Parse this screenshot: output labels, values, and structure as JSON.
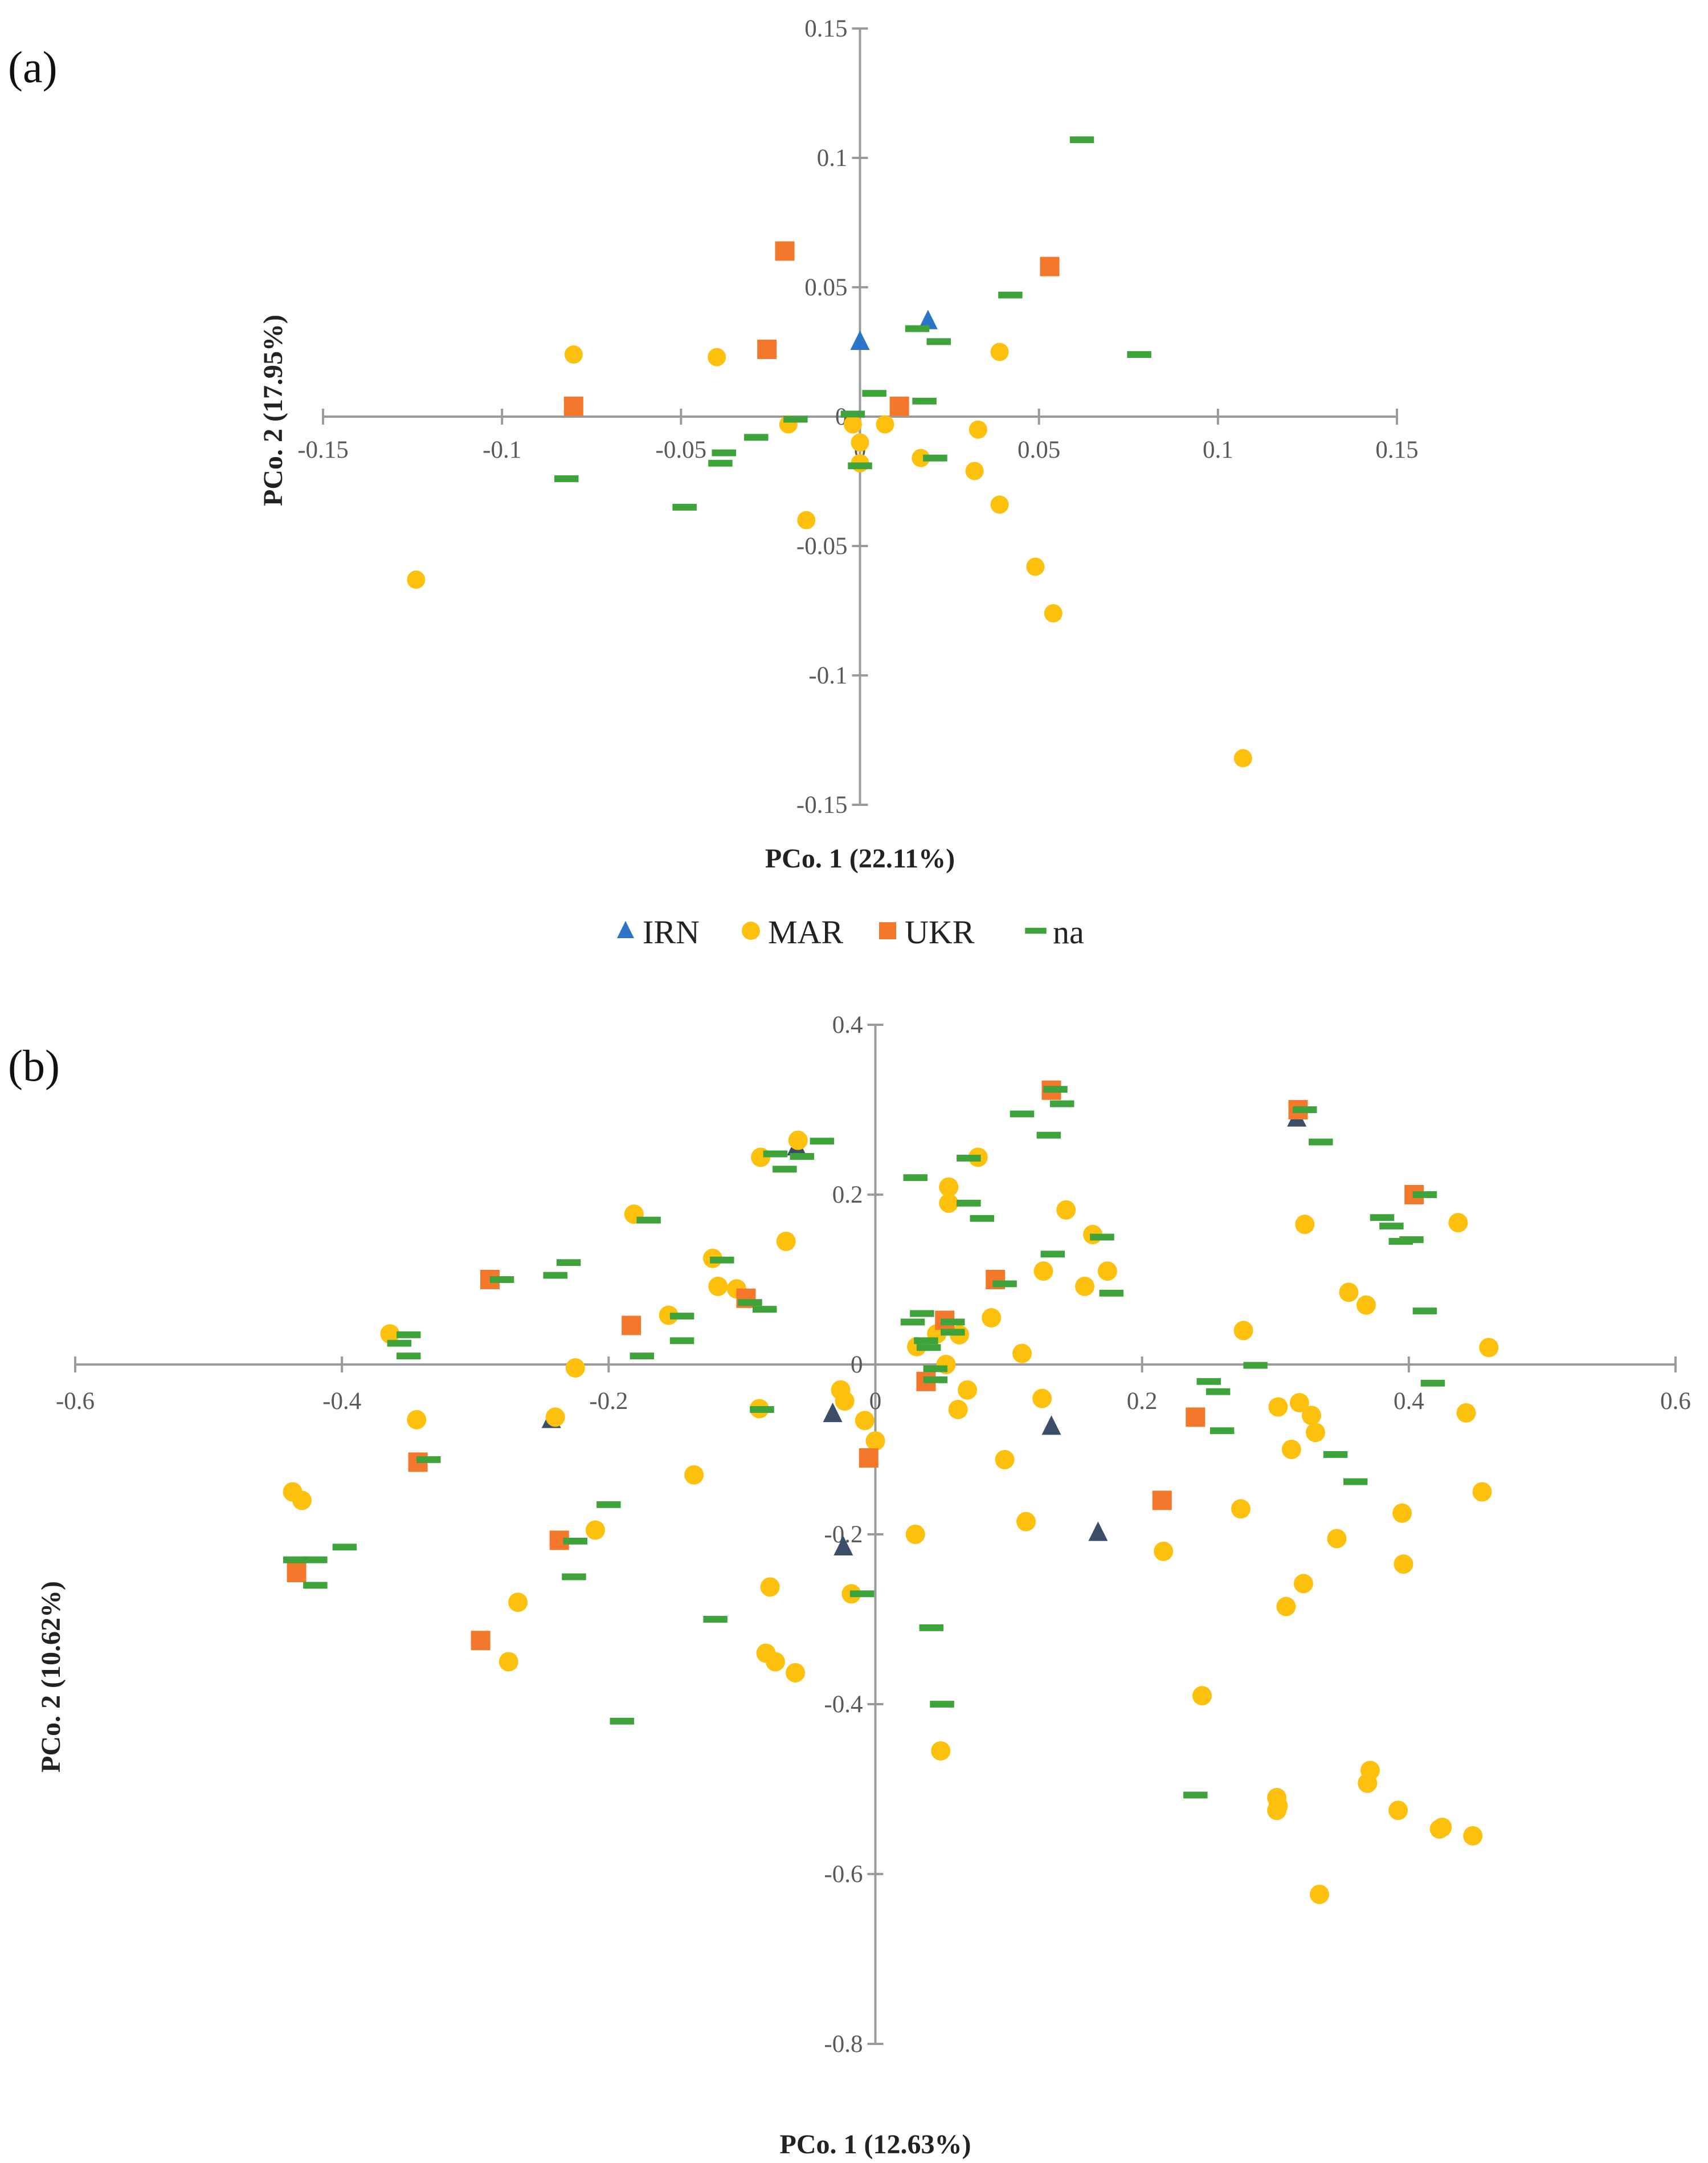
{
  "colors": {
    "IRN": "#2a75c8",
    "IRN_b": "#3b4e68",
    "MAR": "#fdc10d",
    "UKR": "#f4782c",
    "na": "#3ea33a",
    "axis": "#9a9a9a"
  },
  "chart_data": [
    {
      "panel": "(a)",
      "type": "scatter",
      "xlabel": "PCo. 1  (22.11%)",
      "ylabel": "PCo. 2 (17.95%)",
      "xlim": [
        -0.15,
        0.15
      ],
      "ylim": [
        -0.15,
        0.15
      ],
      "xticks": [
        "-0.15",
        "-0.1",
        "-0.05",
        "0",
        "0.05",
        "0.1",
        "0.15"
      ],
      "yticks": [
        "-0.15",
        "-0.1",
        "-0.05",
        "0",
        "0.05",
        "0.1",
        "0.15"
      ],
      "legend": [
        "IRN",
        "MAR",
        "UKR",
        "na"
      ],
      "series": [
        {
          "name": "IRN",
          "marker": "triangle",
          "points": [
            [
              0.0,
              0.029
            ],
            [
              0.019,
              0.037
            ]
          ]
        },
        {
          "name": "MAR",
          "marker": "circle",
          "points": [
            [
              -0.08,
              0.024
            ],
            [
              -0.04,
              0.023
            ],
            [
              -0.02,
              -0.003
            ],
            [
              -0.015,
              -0.04
            ],
            [
              -0.002,
              -0.003
            ],
            [
              0.0,
              -0.018
            ],
            [
              0.007,
              -0.003
            ],
            [
              0.017,
              -0.016
            ],
            [
              0.033,
              -0.005
            ],
            [
              0.032,
              -0.021
            ],
            [
              0.039,
              -0.034
            ],
            [
              0.039,
              0.025
            ],
            [
              0.049,
              -0.058
            ],
            [
              0.054,
              -0.076
            ],
            [
              0.107,
              -0.132
            ],
            [
              -0.124,
              -0.063
            ],
            [
              0.0,
              -0.01
            ]
          ]
        },
        {
          "name": "UKR",
          "marker": "square",
          "points": [
            [
              -0.021,
              0.064
            ],
            [
              -0.026,
              0.026
            ],
            [
              -0.08,
              0.004
            ],
            [
              0.053,
              0.058
            ],
            [
              0.011,
              0.004
            ]
          ]
        },
        {
          "name": "na",
          "marker": "dash",
          "points": [
            [
              0.062,
              0.107
            ],
            [
              0.078,
              0.024
            ],
            [
              0.042,
              0.047
            ],
            [
              0.016,
              0.034
            ],
            [
              0.022,
              0.029
            ],
            [
              0.018,
              0.006
            ],
            [
              0.021,
              -0.016
            ],
            [
              0.004,
              0.009
            ],
            [
              -0.002,
              0.001
            ],
            [
              0.0,
              -0.019
            ],
            [
              -0.018,
              -0.001
            ],
            [
              -0.029,
              -0.008
            ],
            [
              -0.038,
              -0.014
            ],
            [
              -0.039,
              -0.018
            ],
            [
              -0.049,
              -0.035
            ],
            [
              -0.082,
              -0.024
            ]
          ]
        }
      ]
    },
    {
      "panel": "(b)",
      "type": "scatter",
      "xlabel": "PCo. 1 (12.63%)",
      "ylabel": "PCo. 2 (10.62%)",
      "xlim": [
        -0.6,
        0.6
      ],
      "ylim": [
        -0.8,
        0.4
      ],
      "xticks": [
        "-0.6",
        "-0.4",
        "-0.2",
        "0",
        "0.2",
        "0.4",
        "0.6"
      ],
      "yticks": [
        "-0.8",
        "-0.6",
        "-0.4",
        "-0.2",
        "0",
        "0.2",
        "0.4"
      ],
      "series": [
        {
          "name": "IRN",
          "marker": "triangle",
          "points": [
            [
              -0.243,
              -0.065
            ],
            [
              -0.032,
              -0.058
            ],
            [
              -0.024,
              -0.215
            ],
            [
              0.132,
              -0.073
            ],
            [
              0.167,
              -0.198
            ],
            [
              -0.059,
              0.256
            ],
            [
              0.316,
              0.29
            ]
          ]
        },
        {
          "name": "MAR",
          "marker": "circle",
          "points": [
            [
              -0.058,
              0.264
            ],
            [
              -0.086,
              0.244
            ],
            [
              -0.067,
              0.145
            ],
            [
              -0.181,
              0.177
            ],
            [
              -0.122,
              0.125
            ],
            [
              -0.118,
              0.092
            ],
            [
              -0.104,
              0.089
            ],
            [
              -0.155,
              0.058
            ],
            [
              -0.225,
              -0.004
            ],
            [
              -0.24,
              -0.062
            ],
            [
              -0.344,
              -0.065
            ],
            [
              -0.364,
              0.036
            ],
            [
              -0.437,
              -0.15
            ],
            [
              -0.43,
              -0.16
            ],
            [
              -0.268,
              -0.28
            ],
            [
              -0.275,
              -0.35
            ],
            [
              -0.21,
              -0.195
            ],
            [
              -0.136,
              -0.13
            ],
            [
              -0.087,
              -0.052
            ],
            [
              -0.079,
              -0.262
            ],
            [
              -0.082,
              -0.34
            ],
            [
              -0.075,
              -0.35
            ],
            [
              -0.06,
              -0.363
            ],
            [
              -0.026,
              -0.03
            ],
            [
              -0.023,
              -0.043
            ],
            [
              -0.018,
              -0.27
            ],
            [
              -0.008,
              -0.066
            ],
            [
              0.0,
              -0.09
            ],
            [
              0.03,
              -0.2
            ],
            [
              0.031,
              0.021
            ],
            [
              0.046,
              0.036
            ],
            [
              0.053,
              0.0
            ],
            [
              0.055,
              0.209
            ],
            [
              0.055,
              0.19
            ],
            [
              0.062,
              -0.053
            ],
            [
              0.063,
              0.035
            ],
            [
              0.069,
              -0.03
            ],
            [
              0.077,
              0.244
            ],
            [
              0.087,
              0.055
            ],
            [
              0.097,
              -0.112
            ],
            [
              0.11,
              0.013
            ],
            [
              0.113,
              -0.185
            ],
            [
              0.126,
              0.11
            ],
            [
              0.125,
              -0.04
            ],
            [
              0.143,
              0.182
            ],
            [
              0.157,
              0.092
            ],
            [
              0.163,
              0.153
            ],
            [
              0.174,
              0.11
            ],
            [
              0.049,
              -0.455
            ],
            [
              0.216,
              -0.22
            ],
            [
              0.245,
              -0.39
            ],
            [
              0.276,
              0.04
            ],
            [
              0.274,
              -0.17
            ],
            [
              0.302,
              -0.05
            ],
            [
              0.308,
              -0.285
            ],
            [
              0.312,
              -0.1
            ],
            [
              0.318,
              -0.045
            ],
            [
              0.321,
              -0.258
            ],
            [
              0.322,
              0.165
            ],
            [
              0.327,
              -0.06
            ],
            [
              0.33,
              -0.08
            ],
            [
              0.301,
              -0.51
            ],
            [
              0.302,
              -0.52
            ],
            [
              0.301,
              -0.525
            ],
            [
              0.333,
              -0.624
            ],
            [
              0.346,
              -0.205
            ],
            [
              0.355,
              0.085
            ],
            [
              0.368,
              0.07
            ],
            [
              0.371,
              -0.478
            ],
            [
              0.369,
              -0.493
            ],
            [
              0.392,
              -0.525
            ],
            [
              0.395,
              -0.175
            ],
            [
              0.396,
              -0.235
            ],
            [
              0.423,
              -0.547
            ],
            [
              0.425,
              -0.545
            ],
            [
              0.437,
              0.167
            ],
            [
              0.443,
              -0.057
            ],
            [
              0.455,
              -0.15
            ],
            [
              0.46,
              0.02
            ],
            [
              0.448,
              -0.555
            ]
          ]
        },
        {
          "name": "UKR",
          "marker": "square",
          "points": [
            [
              0.132,
              0.323
            ],
            [
              0.317,
              0.3
            ],
            [
              0.404,
              0.2
            ],
            [
              0.09,
              0.1
            ],
            [
              0.052,
              0.052
            ],
            [
              0.038,
              -0.02
            ],
            [
              -0.005,
              -0.11
            ],
            [
              -0.097,
              0.078
            ],
            [
              -0.183,
              0.046
            ],
            [
              -0.289,
              0.1
            ],
            [
              -0.343,
              -0.115
            ],
            [
              -0.237,
              -0.207
            ],
            [
              -0.434,
              -0.245
            ],
            [
              -0.296,
              -0.325
            ],
            [
              0.215,
              -0.16
            ],
            [
              0.24,
              -0.062
            ]
          ]
        },
        {
          "name": "na",
          "marker": "dash",
          "points": [
            [
              0.135,
              0.324
            ],
            [
              0.14,
              0.307
            ],
            [
              0.11,
              0.295
            ],
            [
              0.13,
              0.27
            ],
            [
              0.334,
              0.262
            ],
            [
              0.322,
              0.3
            ],
            [
              0.412,
              0.2
            ],
            [
              0.38,
              0.173
            ],
            [
              0.387,
              0.163
            ],
            [
              0.394,
              0.145
            ],
            [
              0.402,
              0.147
            ],
            [
              0.412,
              0.063
            ],
            [
              0.418,
              -0.022
            ],
            [
              0.285,
              -0.001
            ],
            [
              0.25,
              -0.02
            ],
            [
              0.257,
              -0.032
            ],
            [
              0.26,
              -0.078
            ],
            [
              0.345,
              -0.106
            ],
            [
              0.36,
              -0.138
            ],
            [
              0.24,
              -0.507
            ],
            [
              -0.04,
              0.263
            ],
            [
              -0.055,
              0.245
            ],
            [
              -0.068,
              0.23
            ],
            [
              -0.075,
              0.248
            ],
            [
              0.03,
              0.22
            ],
            [
              0.07,
              0.19
            ],
            [
              0.08,
              0.172
            ],
            [
              0.07,
              0.243
            ],
            [
              0.133,
              0.13
            ],
            [
              0.17,
              0.15
            ],
            [
              0.177,
              0.084
            ],
            [
              0.097,
              0.095
            ],
            [
              0.058,
              0.05
            ],
            [
              0.058,
              0.038
            ],
            [
              0.028,
              0.05
            ],
            [
              0.035,
              0.06
            ],
            [
              0.038,
              0.028
            ],
            [
              0.04,
              0.02
            ],
            [
              0.045,
              -0.018
            ],
            [
              -0.083,
              0.065
            ],
            [
              -0.085,
              -0.053
            ],
            [
              -0.094,
              0.073
            ],
            [
              -0.115,
              0.123
            ],
            [
              -0.145,
              0.057
            ],
            [
              -0.145,
              0.028
            ],
            [
              -0.17,
              0.17
            ],
            [
              -0.175,
              0.01
            ],
            [
              -0.2,
              -0.165
            ],
            [
              -0.19,
              -0.42
            ],
            [
              -0.12,
              -0.3
            ],
            [
              -0.23,
              0.12
            ],
            [
              -0.24,
              0.105
            ],
            [
              -0.28,
              0.1
            ],
            [
              -0.225,
              -0.208
            ],
            [
              -0.226,
              -0.25
            ],
            [
              -0.35,
              0.035
            ],
            [
              -0.357,
              0.025
            ],
            [
              -0.35,
              0.01
            ],
            [
              -0.335,
              -0.112
            ],
            [
              -0.42,
              -0.23
            ],
            [
              -0.435,
              -0.23
            ],
            [
              -0.42,
              -0.26
            ],
            [
              -0.398,
              -0.215
            ],
            [
              0.042,
              -0.31
            ],
            [
              0.05,
              -0.4
            ],
            [
              -0.01,
              -0.27
            ],
            [
              0.045,
              -0.005
            ]
          ]
        }
      ]
    }
  ]
}
